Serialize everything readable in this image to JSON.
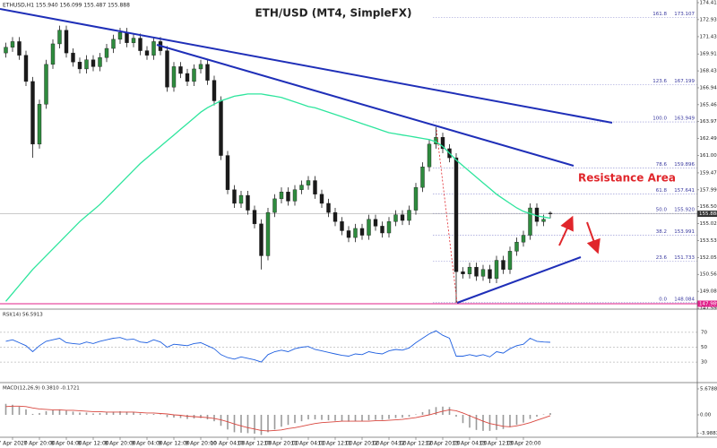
{
  "chart_data": [
    {
      "type": "candlestick",
      "title": "ETH/USD (MT4, SimpleFX)",
      "header": "ETHUSD,H1 155.940 156.099 155.487 155.888",
      "annotation": "Resistance Area",
      "categories": [
        null,
        "7 Apr 2020",
        null,
        null,
        null,
        "7 Apr 20:00",
        null,
        null,
        null,
        "8 Apr 04:00",
        null,
        null,
        null,
        "8 Apr 12:00",
        null,
        null,
        null,
        "8 Apr 20:00",
        null,
        null,
        null,
        "9 Apr 04:00",
        null,
        null,
        null,
        "9 Apr 12:00",
        null,
        null,
        null,
        "9 Apr 20:00",
        null,
        null,
        null,
        "10 Apr 04:00",
        null,
        null,
        null,
        "10 Apr 12:00",
        null,
        null,
        null,
        "10 Apr 20:00",
        null,
        null,
        null,
        "11 Apr 04:00",
        null,
        null,
        null,
        "11 Apr 12:00",
        null,
        null,
        null,
        "11 Apr 20:00",
        null,
        null,
        null,
        "12 Apr 04:00",
        null,
        null,
        null,
        "12 Apr 12:00",
        null,
        null,
        null,
        "12 Apr 20:00",
        null,
        null,
        null,
        "13 Apr 04:00",
        null,
        null,
        null,
        "13 Apr 12:00",
        null,
        null,
        null,
        "13 Apr 20:00",
        null,
        null,
        null,
        null
      ],
      "open": [
        170.0,
        170.5,
        171.0,
        169.8,
        167.5,
        162.0,
        165.5,
        169.0,
        170.8,
        172.0,
        170.0,
        169.2,
        168.6,
        169.4,
        168.8,
        169.6,
        170.4,
        171.2,
        171.8,
        170.9,
        171.3,
        170.2,
        169.8,
        171.0,
        170.2,
        167.0,
        168.8,
        168.2,
        167.5,
        168.6,
        169.0,
        167.6,
        165.8,
        161.0,
        158.0,
        156.8,
        157.5,
        156.2,
        155.0,
        152.2,
        156.0,
        157.2,
        157.8,
        157.0,
        158.0,
        158.4,
        158.8,
        157.6,
        156.8,
        156.0,
        155.2,
        154.4,
        153.8,
        154.6,
        154.0,
        155.4,
        154.8,
        154.2,
        155.2,
        155.8,
        155.3,
        156.2,
        158.2,
        160.0,
        162.0,
        162.6,
        161.6,
        160.8,
        150.8,
        150.6,
        151.2,
        150.4,
        151.0,
        150.2,
        151.8,
        151.0,
        152.6,
        153.4,
        154.0,
        156.4,
        155.2,
        155.94
      ],
      "high": [
        170.9,
        171.4,
        171.4,
        170.2,
        167.9,
        165.9,
        169.4,
        171.2,
        172.4,
        172.4,
        170.4,
        169.6,
        169.8,
        169.8,
        170.0,
        170.8,
        171.6,
        172.2,
        172.2,
        171.7,
        171.7,
        170.6,
        171.4,
        171.4,
        170.6,
        169.2,
        169.2,
        168.6,
        169.0,
        169.4,
        169.4,
        168.0,
        166.2,
        161.4,
        158.4,
        157.9,
        157.9,
        156.6,
        155.4,
        156.4,
        157.6,
        158.2,
        158.2,
        158.4,
        158.8,
        159.2,
        159.2,
        158.0,
        157.2,
        156.4,
        155.6,
        154.8,
        155.0,
        155.0,
        155.8,
        155.8,
        155.2,
        155.6,
        156.2,
        156.2,
        156.6,
        158.6,
        160.4,
        162.4,
        163.5,
        163.0,
        162.0,
        161.2,
        151.2,
        151.6,
        151.6,
        151.4,
        151.4,
        152.2,
        152.2,
        153.0,
        153.8,
        154.4,
        156.8,
        156.8,
        155.8,
        156.099
      ],
      "low": [
        169.6,
        170.1,
        169.4,
        167.1,
        160.8,
        161.6,
        165.1,
        168.6,
        170.4,
        169.6,
        168.8,
        168.2,
        168.2,
        168.4,
        168.4,
        169.2,
        170.0,
        170.8,
        170.5,
        170.5,
        169.8,
        169.4,
        169.4,
        169.8,
        166.6,
        166.6,
        167.8,
        167.1,
        167.1,
        168.2,
        167.2,
        165.4,
        160.6,
        157.6,
        156.4,
        156.4,
        155.8,
        154.6,
        151.0,
        151.8,
        155.6,
        156.8,
        156.6,
        156.6,
        157.6,
        158.0,
        157.2,
        156.4,
        155.6,
        154.8,
        154.0,
        153.4,
        153.4,
        153.6,
        153.6,
        154.4,
        153.8,
        153.8,
        154.8,
        154.9,
        154.9,
        155.8,
        157.8,
        159.6,
        161.6,
        161.2,
        160.4,
        148.08,
        150.2,
        150.2,
        150.0,
        150.0,
        149.8,
        149.8,
        150.6,
        150.6,
        152.2,
        153.0,
        153.6,
        154.8,
        154.8,
        155.487
      ],
      "close": [
        170.5,
        171.0,
        169.8,
        167.5,
        162.0,
        165.5,
        169.0,
        170.8,
        172.0,
        170.0,
        169.2,
        168.6,
        169.4,
        168.8,
        169.6,
        170.4,
        171.2,
        171.8,
        170.9,
        171.3,
        170.2,
        169.8,
        171.0,
        170.2,
        167.0,
        168.8,
        168.2,
        167.5,
        168.6,
        169.0,
        167.6,
        165.8,
        161.0,
        158.0,
        156.8,
        157.5,
        156.2,
        155.0,
        152.2,
        156.0,
        157.2,
        157.8,
        157.0,
        158.0,
        158.4,
        158.8,
        157.6,
        156.8,
        156.0,
        155.2,
        154.4,
        153.8,
        154.6,
        154.0,
        155.4,
        154.8,
        154.2,
        155.2,
        155.8,
        155.3,
        156.2,
        158.2,
        160.0,
        162.0,
        162.6,
        161.6,
        160.8,
        150.8,
        150.6,
        151.2,
        150.4,
        151.0,
        150.2,
        151.8,
        151.0,
        152.6,
        153.4,
        154.0,
        156.4,
        155.2,
        155.4,
        155.888
      ],
      "up_color": "#2e8b3e",
      "down_color": "#1a1a1a",
      "ma": {
        "color": "#2ee59d",
        "values": [
          148.2,
          148.9,
          149.6,
          150.3,
          151.0,
          151.6,
          152.2,
          152.8,
          153.4,
          154.0,
          154.6,
          155.2,
          155.7,
          156.2,
          156.7,
          157.3,
          157.9,
          158.5,
          159.1,
          159.7,
          160.3,
          160.8,
          161.3,
          161.8,
          162.3,
          162.8,
          163.3,
          163.8,
          164.3,
          164.8,
          165.2,
          165.5,
          165.8,
          166.0,
          166.2,
          166.3,
          166.4,
          166.4,
          166.4,
          166.3,
          166.2,
          166.1,
          165.9,
          165.7,
          165.5,
          165.3,
          165.2,
          165.0,
          164.8,
          164.6,
          164.4,
          164.2,
          164.0,
          163.8,
          163.6,
          163.4,
          163.2,
          163.0,
          162.9,
          162.8,
          162.7,
          162.6,
          162.5,
          162.4,
          162.2,
          161.8,
          161.2,
          160.6,
          160.1,
          159.6,
          159.1,
          158.6,
          158.1,
          157.6,
          157.2,
          156.8,
          156.4,
          156.1,
          155.9,
          155.7,
          155.6,
          155.5
        ]
      },
      "ylim": [
        147.595,
        174.65
      ],
      "yticks": [
        174.415,
        {
          "value": 172.93,
          "label": "172.930"
        },
        {
          "value": 171.43,
          "label": "171.430"
        },
        169.915,
        {
          "value": 168.43,
          "label": "168.430"
        },
        166.945,
        {
          "value": 165.46,
          "label": "165.460"
        },
        163.975,
        {
          "value": 162.49,
          "label": "162.490"
        },
        161.005,
        159.475,
        {
          "value": 157.99,
          "label": "157.990"
        },
        156.505,
        {
          "value": 155.02,
          "label": "155.020"
        },
        153.535,
        {
          "value": 152.05,
          "label": "152.050"
        },
        150.565,
        {
          "value": 149.08,
          "label": "149.080"
        },
        147.595
      ],
      "current_price": 155.888,
      "low_level": 147.989,
      "fib_levels": [
        {
          "ratio": "161.8",
          "price": 173.107
        },
        {
          "ratio": "123.6",
          "price": 167.199
        },
        {
          "ratio": "100.0",
          "price": 163.949
        },
        {
          "ratio": "78.6",
          "price": 159.896
        },
        {
          "ratio": "61.8",
          "price": 157.641
        },
        {
          "ratio": "50.0",
          "price": {
            "value": 155.92,
            "label": "155.920"
          }
        },
        {
          "ratio": "38.2",
          "price": 153.991
        },
        {
          "ratio": "23.6",
          "price": 151.733
        },
        {
          "ratio": "0.0",
          "price": 148.084
        }
      ]
    },
    {
      "type": "line",
      "title": "RSI(14) 56.5913",
      "color": "#1e5fe0",
      "values": [
        58,
        60,
        56,
        52,
        44,
        52,
        58,
        60,
        62,
        56,
        55,
        54,
        57,
        55,
        58,
        60,
        62,
        63,
        60,
        61,
        57,
        56,
        60,
        57,
        50,
        54,
        53,
        52,
        55,
        56,
        52,
        48,
        40,
        36,
        34,
        37,
        35,
        33,
        30,
        40,
        44,
        46,
        44,
        48,
        50,
        51,
        47,
        45,
        43,
        41,
        39,
        38,
        41,
        40,
        44,
        42,
        41,
        45,
        47,
        46,
        49,
        56,
        62,
        68,
        72,
        66,
        62,
        38,
        38,
        40,
        38,
        40,
        37,
        44,
        42,
        48,
        52,
        54,
        62,
        58,
        57,
        56.5913
      ],
      "ylim": [
        0,
        100
      ],
      "yticks": [
        70,
        50,
        30
      ]
    },
    {
      "type": "macd",
      "title": "MACD(12,26,9) 0.3810 -0.1721",
      "hist_color": "#9a9a9a",
      "signal_color": "#d9473f",
      "histogram": [
        2.4,
        2.2,
        1.8,
        1.2,
        0.2,
        0.4,
        0.8,
        1.0,
        1.2,
        0.9,
        0.7,
        0.5,
        0.5,
        0.3,
        0.4,
        0.5,
        0.7,
        0.8,
        0.7,
        0.6,
        0.3,
        0.1,
        0.2,
        0.1,
        -0.5,
        -0.6,
        -0.7,
        -0.9,
        -0.8,
        -0.7,
        -1.0,
        -1.4,
        -2.4,
        -3.2,
        -3.8,
        -3.9,
        -4.0,
        -4.1,
        -4.4,
        -3.8,
        -3.2,
        -2.6,
        -2.2,
        -1.8,
        -1.4,
        -1.0,
        -1.0,
        -1.1,
        -1.2,
        -1.3,
        -1.4,
        -1.5,
        -1.4,
        -1.4,
        -1.2,
        -1.1,
        -1.1,
        -0.9,
        -0.7,
        -0.6,
        -0.4,
        0.1,
        0.6,
        1.2,
        1.7,
        1.8,
        1.7,
        -0.4,
        -1.8,
        -2.8,
        -3.3,
        -3.5,
        -3.5,
        -3.3,
        -3.1,
        -2.7,
        -2.2,
        -1.7,
        -0.9,
        -0.4,
        0.1,
        0.381
      ],
      "signal": [
        1.8,
        1.9,
        1.9,
        1.8,
        1.5,
        1.3,
        1.2,
        1.1,
        1.1,
        1.0,
        1.0,
        0.9,
        0.8,
        0.7,
        0.7,
        0.6,
        0.6,
        0.6,
        0.6,
        0.6,
        0.5,
        0.4,
        0.4,
        0.3,
        0.2,
        0.0,
        -0.1,
        -0.3,
        -0.4,
        -0.5,
        -0.6,
        -0.8,
        -1.1,
        -1.5,
        -2.0,
        -2.4,
        -2.8,
        -3.1,
        -3.4,
        -3.5,
        -3.4,
        -3.3,
        -3.0,
        -2.8,
        -2.5,
        -2.2,
        -1.9,
        -1.7,
        -1.6,
        -1.5,
        -1.4,
        -1.4,
        -1.4,
        -1.4,
        -1.4,
        -1.3,
        -1.3,
        -1.2,
        -1.1,
        -1.0,
        -0.8,
        -0.6,
        -0.3,
        0.0,
        0.4,
        0.8,
        1.1,
        0.9,
        0.4,
        -0.2,
        -0.8,
        -1.4,
        -1.9,
        -2.2,
        -2.5,
        -2.6,
        -2.4,
        -2.1,
        -1.7,
        -1.2,
        -0.7,
        -0.1721
      ],
      "ylim": [
        -4.7,
        6.85
      ],
      "yticks": [
        5.6788,
        {
          "value": 0,
          "label": "0.00"
        },
        -3.9883
      ]
    }
  ]
}
